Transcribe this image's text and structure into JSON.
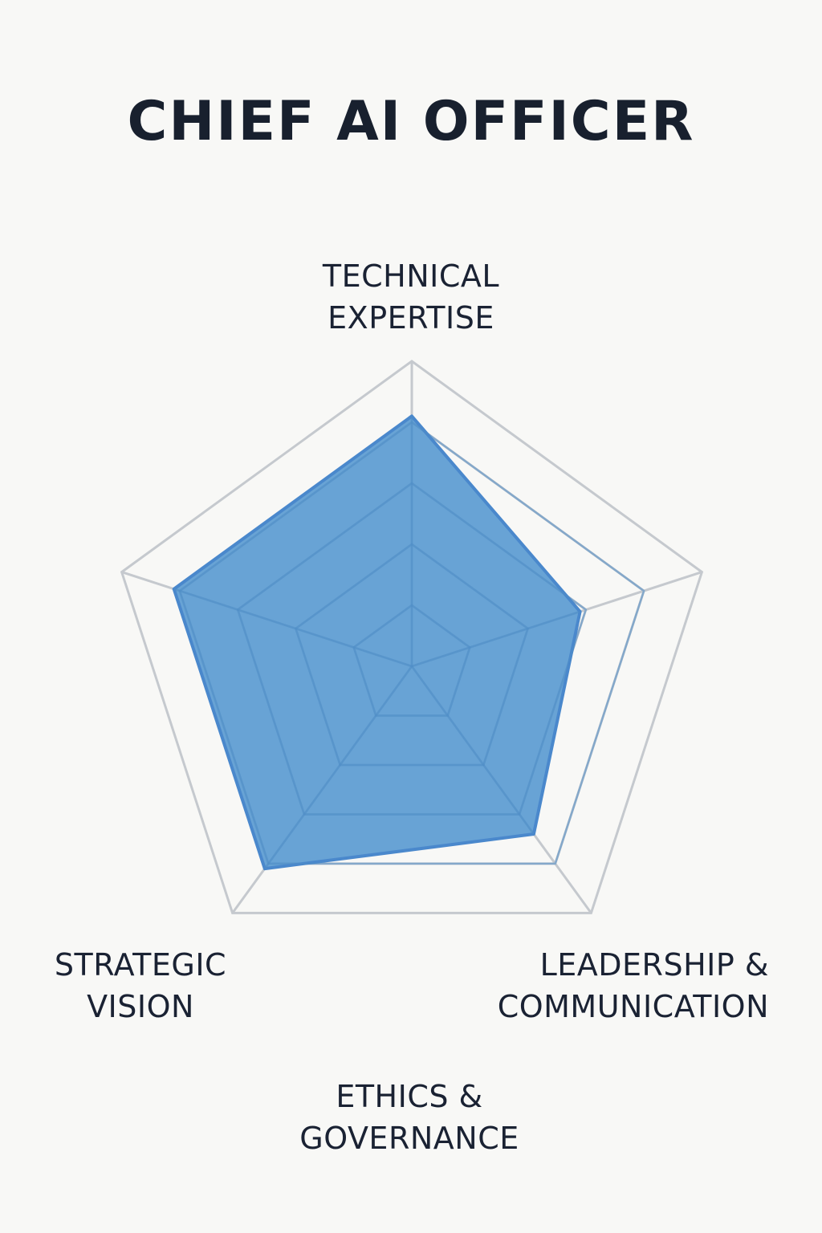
{
  "chart_data": {
    "type": "radar",
    "title": "CHIEF AI OFFICER",
    "axes": [
      {
        "line1": "TECHNICAL",
        "line2": "EXPERTISE"
      },
      {
        "line1": "LEADERSHIP &",
        "line2": "COMMUNICATION"
      },
      {
        "line1": "ETHICS &",
        "line2": "GOVERNANCE"
      },
      {
        "line1": "",
        "line2": ""
      },
      {
        "line1": "STRATEGIC",
        "line2": "VISION"
      }
    ],
    "levels": 5,
    "max": 5,
    "series": [
      {
        "values": [
          4.1,
          2.9,
          3.4,
          4.1,
          4.1
        ],
        "color": "#5b9bd1",
        "stroke": "#4a88cc"
      }
    ],
    "grid_color": "#c5c9ce"
  }
}
